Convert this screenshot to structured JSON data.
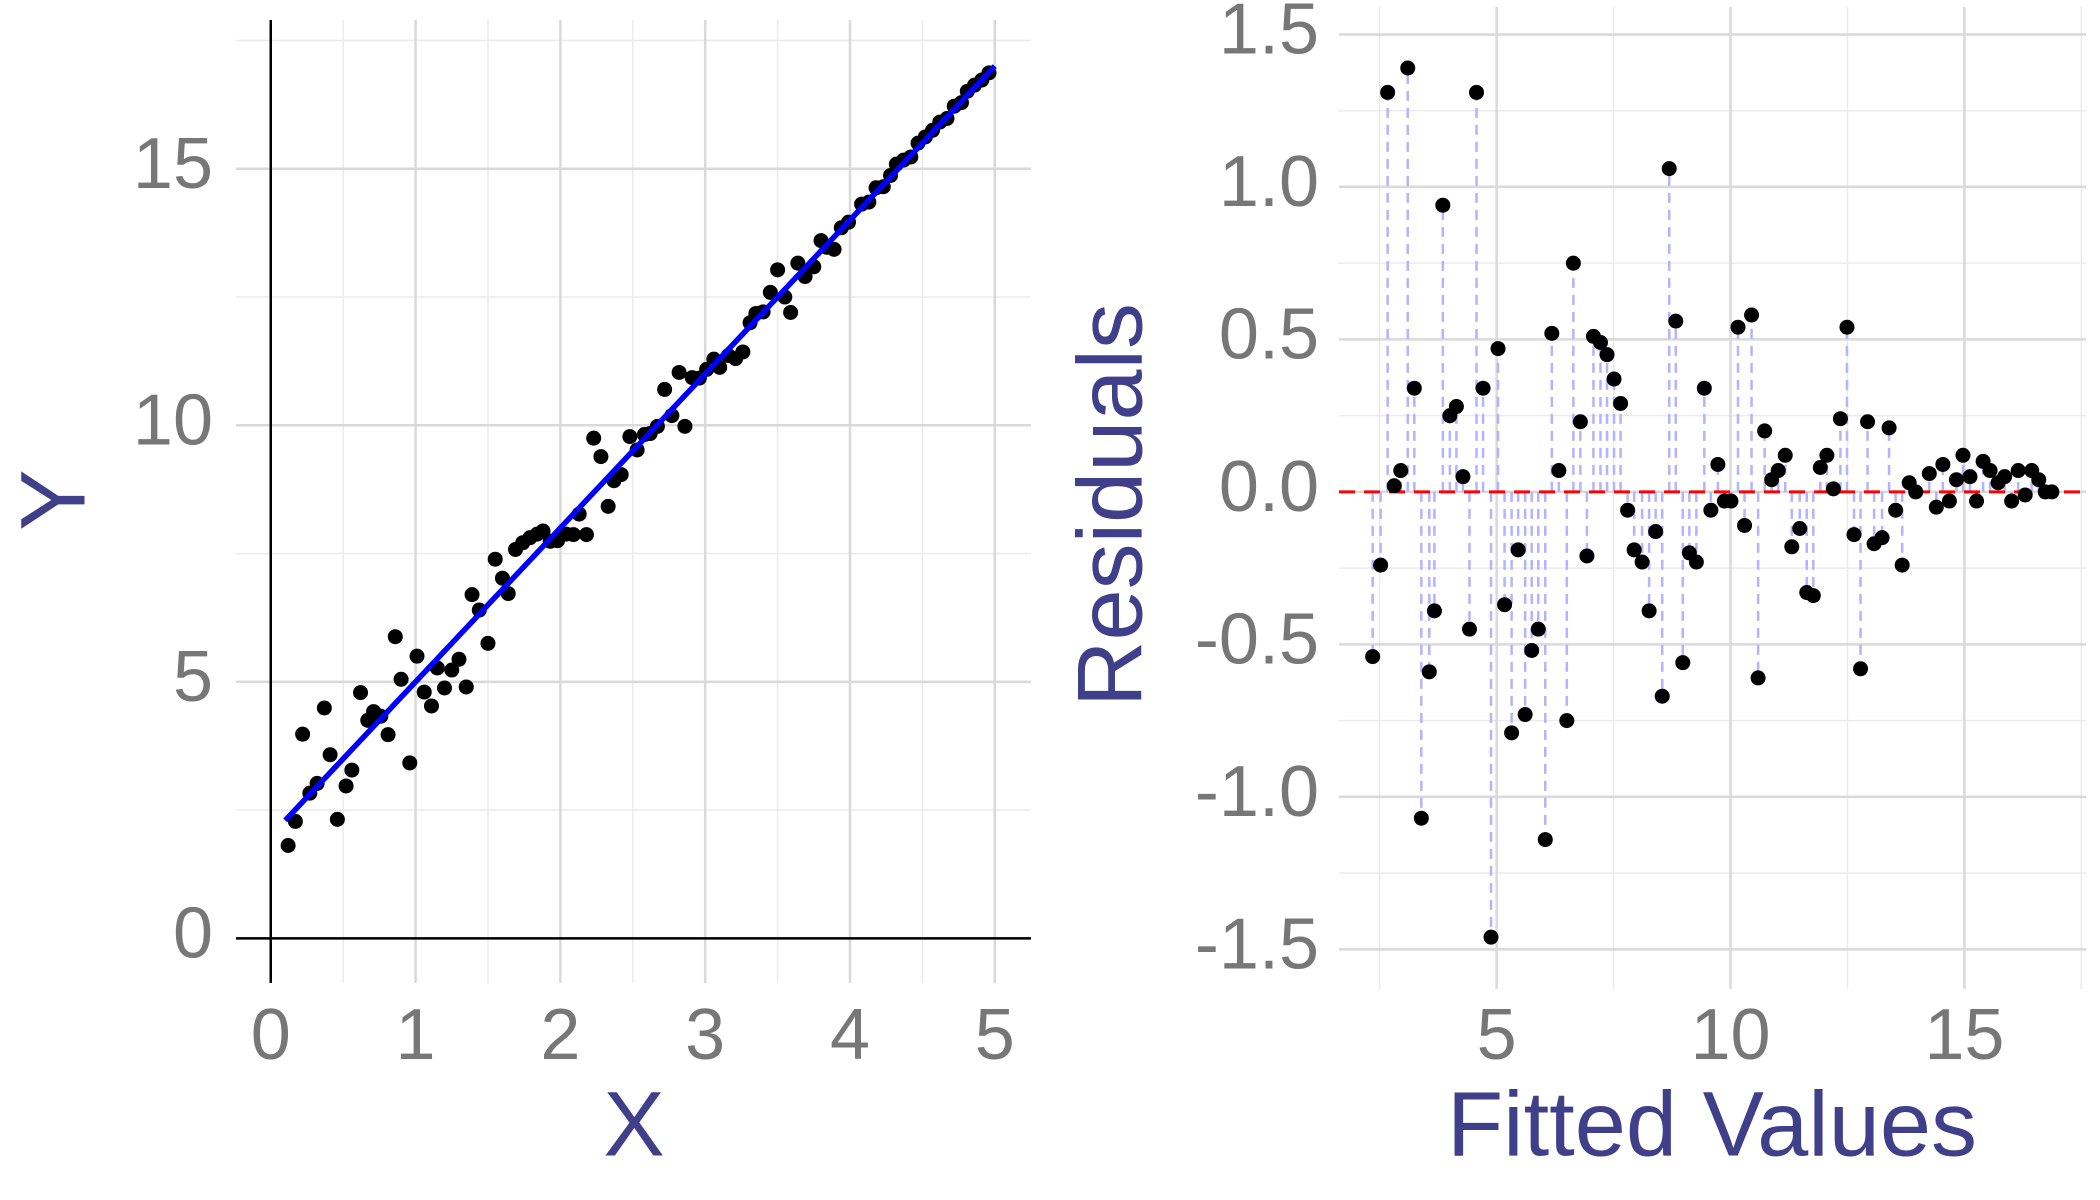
{
  "chart_data": [
    {
      "type": "scatter",
      "x_label": "X",
      "y_label": "Y",
      "xlim": [
        -0.24,
        5.25
      ],
      "ylim": [
        -0.87,
        17.9
      ],
      "xticks": [
        0,
        1,
        2,
        3,
        4,
        5
      ],
      "yticks": [
        0,
        5,
        10,
        15
      ],
      "minor_xticks": [
        0.5,
        1.5,
        2.5,
        3.5,
        4.5
      ],
      "minor_yticks": [
        2.5,
        7.5,
        12.5,
        17.5
      ],
      "grid": true,
      "axis_lines": true,
      "series": [
        {
          "mode": "markers",
          "color": "#000000",
          "x": [
            0.12,
            0.17,
            0.22,
            0.27,
            0.32,
            0.37,
            0.41,
            0.46,
            0.52,
            0.56,
            0.62,
            0.67,
            0.71,
            0.76,
            0.81,
            0.86,
            0.9,
            0.96,
            1.01,
            1.06,
            1.11,
            1.15,
            1.2,
            1.25,
            1.3,
            1.35,
            1.39,
            1.44,
            1.5,
            1.55,
            1.6,
            1.64,
            1.69,
            1.74,
            1.79,
            1.84,
            1.88,
            1.93,
            1.98,
            2.04,
            2.09,
            2.13,
            2.18,
            2.23,
            2.28,
            2.33,
            2.37,
            2.42,
            2.48,
            2.53,
            2.58,
            2.62,
            2.67,
            2.72,
            2.77,
            2.82,
            2.86,
            2.91,
            2.96,
            3.01,
            3.06,
            3.1,
            3.16,
            3.21,
            3.26,
            3.31,
            3.35,
            3.4,
            3.45,
            3.5,
            3.55,
            3.59,
            3.64,
            3.69,
            3.75,
            3.8,
            3.84,
            3.89,
            3.94,
            3.99,
            4.08,
            4.13,
            4.18,
            4.23,
            4.28,
            4.32,
            4.37,
            4.42,
            4.47,
            4.52,
            4.57,
            4.62,
            4.67,
            4.72,
            4.77,
            4.81,
            4.86,
            4.91,
            4.96
          ],
          "y": [
            1.81,
            2.28,
            3.98,
            2.83,
            3.02,
            4.49,
            3.58,
            2.32,
            2.97,
            3.28,
            4.79,
            4.25,
            4.42,
            4.33,
            3.97,
            5.88,
            5.05,
            3.42,
            5.5,
            4.8,
            4.53,
            5.27,
            4.88,
            5.23,
            5.44,
            4.9,
            6.7,
            6.4,
            5.75,
            7.39,
            7.02,
            6.72,
            7.58,
            7.71,
            7.81,
            7.88,
            7.94,
            7.74,
            7.75,
            7.88,
            7.87,
            8.27,
            7.87,
            9.75,
            9.39,
            8.42,
            8.92,
            9.04,
            9.78,
            9.52,
            9.82,
            9.84,
            9.98,
            10.7,
            10.19,
            11.03,
            9.98,
            10.93,
            10.92,
            11.09,
            11.29,
            11.13,
            11.36,
            11.3,
            11.43,
            12.0,
            12.18,
            12.21,
            12.59,
            13.03,
            12.5,
            12.2,
            13.16,
            12.9,
            13.09,
            13.6,
            13.47,
            13.43,
            13.85,
            13.96,
            14.31,
            14.35,
            14.63,
            14.65,
            14.87,
            15.09,
            15.17,
            15.23,
            15.5,
            15.62,
            15.75,
            15.91,
            15.98,
            16.22,
            16.29,
            16.51,
            16.63,
            16.73,
            16.87
          ]
        },
        {
          "mode": "line",
          "color": "#0000ff",
          "x": [
            0.1,
            5
          ],
          "y": [
            2.3,
            17.0
          ]
        }
      ]
    },
    {
      "type": "scatter",
      "x_label": "Fitted Values",
      "y_label": "Residuals",
      "xlim": [
        1.63,
        17.6
      ],
      "ylim": [
        -1.63,
        1.59
      ],
      "xticks": [
        5,
        10,
        15
      ],
      "yticks": [
        -1.5,
        {
          "value": -1,
          "label": "-1.0"
        },
        -0.5,
        {
          "value": 0,
          "label": "0.0"
        },
        0.5,
        {
          "value": 1,
          "label": "1.0"
        },
        1.5
      ],
      "minor_xticks": [
        2.5,
        7.5,
        12.5,
        17.5
      ],
      "minor_yticks": [
        -1.25,
        -0.75,
        -0.25,
        0.25,
        0.75,
        1.25
      ],
      "grid": true,
      "axis_lines": false,
      "reference_line": {
        "y": 0,
        "color": "#ff0000"
      },
      "residual_lines": {
        "color": "#b3b3ff"
      },
      "series": [
        {
          "mode": "markers",
          "color": "#000000",
          "x": [
            2.35,
            2.52,
            2.67,
            2.81,
            2.95,
            3.1,
            3.24,
            3.39,
            3.56,
            3.67,
            3.85,
            4.0,
            4.14,
            4.28,
            4.42,
            4.57,
            4.71,
            4.88,
            5.03,
            5.17,
            5.32,
            5.46,
            5.61,
            5.75,
            5.89,
            6.04,
            6.18,
            6.33,
            6.5,
            6.64,
            6.79,
            6.93,
            7.07,
            7.22,
            7.36,
            7.51,
            7.65,
            7.8,
            7.94,
            8.11,
            8.26,
            8.4,
            8.54,
            8.69,
            8.83,
            8.98,
            9.12,
            9.27,
            9.44,
            9.58,
            9.73,
            9.87,
            10.01,
            10.16,
            10.3,
            10.45,
            10.59,
            10.73,
            10.88,
            11.02,
            11.17,
            11.31,
            11.48,
            11.63,
            11.77,
            11.92,
            12.06,
            12.2,
            12.35,
            12.49,
            12.64,
            12.78,
            12.93,
            13.07,
            13.24,
            13.39,
            13.53,
            13.67,
            13.82,
            13.96,
            14.25,
            14.4,
            14.54,
            14.68,
            14.83,
            14.97,
            15.12,
            15.26,
            15.4,
            15.55,
            15.72,
            15.86,
            16.01,
            16.15,
            16.3,
            16.44,
            16.59,
            16.73,
            16.87
          ],
          "y": [
            -0.54,
            -0.24,
            1.31,
            0.02,
            0.07,
            1.39,
            0.34,
            -1.07,
            -0.59,
            -0.39,
            0.94,
            0.25,
            0.28,
            0.05,
            -0.45,
            1.31,
            0.34,
            -1.46,
            0.47,
            -0.37,
            -0.79,
            -0.19,
            -0.73,
            -0.52,
            -0.45,
            -1.14,
            0.52,
            0.07,
            -0.75,
            0.75,
            0.23,
            -0.21,
            0.51,
            0.49,
            0.45,
            0.37,
            0.29,
            -0.06,
            -0.19,
            -0.23,
            -0.39,
            -0.13,
            -0.67,
            1.06,
            0.56,
            -0.56,
            -0.2,
            -0.23,
            0.34,
            -0.06,
            0.09,
            -0.03,
            -0.03,
            0.54,
            -0.11,
            0.58,
            -0.61,
            0.2,
            0.04,
            0.07,
            0.12,
            -0.18,
            -0.12,
            -0.33,
            -0.34,
            0.08,
            0.12,
            0.01,
            0.24,
            0.54,
            -0.14,
            -0.58,
            0.23,
            -0.17,
            -0.15,
            0.21,
            -0.06,
            -0.24,
            0.03,
            0.0,
            0.06,
            -0.05,
            0.09,
            -0.03,
            0.04,
            0.12,
            0.05,
            -0.03,
            0.1,
            0.07,
            0.03,
            0.05,
            -0.03,
            0.07,
            -0.01,
            0.07,
            0.04,
            0.0,
            0.0
          ]
        }
      ]
    }
  ]
}
